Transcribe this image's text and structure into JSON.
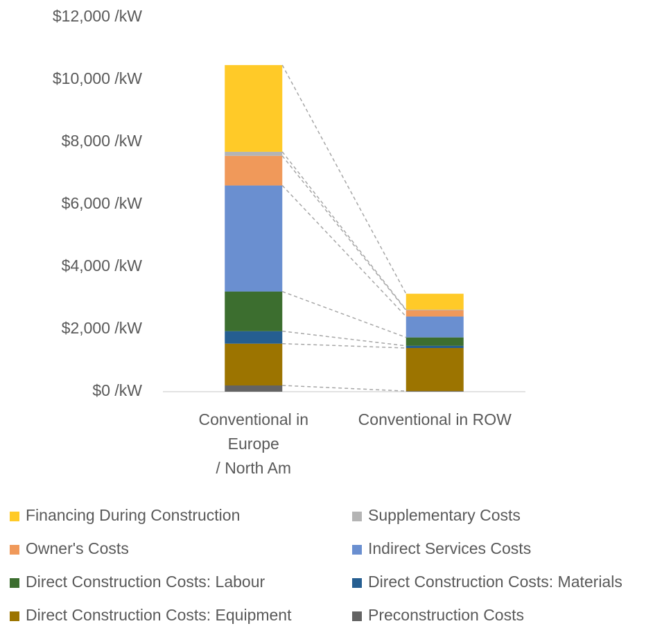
{
  "chart_data": {
    "type": "stacked-bar",
    "categories": [
      "Conventional in Europe\n/ North Am",
      "Conventional in ROW"
    ],
    "series": [
      {
        "name": "Preconstruction Costs",
        "color": "#636363",
        "values": [
          200,
          20
        ]
      },
      {
        "name": "Direct Construction Costs: Equipment",
        "color": "#9c7400",
        "values": [
          1340,
          1380
        ]
      },
      {
        "name": "Direct Construction Costs: Materials",
        "color": "#255e91",
        "values": [
          400,
          70
        ]
      },
      {
        "name": "Direct Construction Costs: Labour",
        "color": "#3c6e2f",
        "values": [
          1270,
          270
        ]
      },
      {
        "name": "Indirect Services Costs",
        "color": "#6a8fd0",
        "values": [
          3400,
          670
        ]
      },
      {
        "name": "Owner's Costs",
        "color": "#f0995a",
        "values": [
          950,
          200
        ]
      },
      {
        "name": "Supplementary Costs",
        "color": "#b4b4b4",
        "values": [
          130,
          20
        ]
      },
      {
        "name": "Financing During Construction",
        "color": "#ffca28",
        "values": [
          2780,
          510
        ]
      }
    ],
    "ylim": [
      0,
      12000
    ],
    "yticks": [
      {
        "value": 0,
        "label": "$0 /kW"
      },
      {
        "value": 2000,
        "label": "$2,000 /kW"
      },
      {
        "value": 4000,
        "label": "$4,000 /kW"
      },
      {
        "value": 6000,
        "label": "$6,000 /kW"
      },
      {
        "value": 8000,
        "label": "$8,000 /kW"
      },
      {
        "value": 10000,
        "label": "$10,000 /kW"
      },
      {
        "value": 12000,
        "label": "$12,000 /kW"
      }
    ],
    "connector_lines": true,
    "legend": "bottom"
  }
}
